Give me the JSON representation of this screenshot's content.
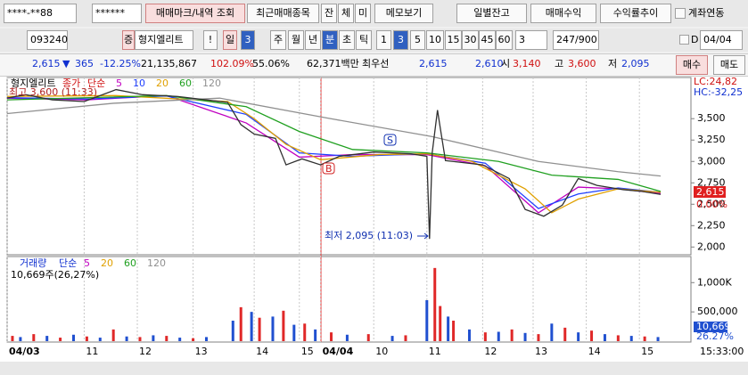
{
  "toolbar_top": [
    "****-**88",
    "******",
    "매매마크/내역 조회",
    "최근매매종목",
    "잔",
    "체",
    "미",
    "메모보기",
    "일별잔고",
    "매매수익",
    "수익률추이",
    "계좌연동"
  ],
  "toolbar_mid": [
    "093240",
    "증",
    "형지엘리트",
    "!",
    "일",
    "3",
    "주",
    "월",
    "년",
    "분",
    "초",
    "틱",
    "1",
    "3",
    "5",
    "10",
    "15",
    "30",
    "45",
    "60",
    "3",
    "247/900",
    "D",
    "04/04"
  ],
  "quote": [
    "2,615",
    "▼",
    "365",
    "-12.25%",
    "21,135,867",
    "102.09%",
    "55.06%",
    "62,371백만",
    "최우선",
    "2,615",
    "2,610",
    "시",
    "3,140",
    "고",
    "3,600",
    "저",
    "2,095",
    "매수",
    "매도"
  ],
  "chart_data": [
    {
      "type": "line",
      "title": "형지엘리트",
      "legend_method": "단순",
      "close": {
        "name": "종가",
        "color": "#303030",
        "x": [
          0,
          7,
          17,
          29,
          41,
          51,
          64,
          83,
          88,
          93,
          101,
          105,
          111,
          118,
          125,
          138,
          152,
          158,
          159,
          160,
          162,
          163,
          165,
          179,
          189,
          195,
          202,
          209,
          215,
          222,
          232,
          239,
          246
        ],
        "values": [
          3740,
          3780,
          3720,
          3700,
          3840,
          3780,
          3760,
          3690,
          3430,
          3320,
          3270,
          2960,
          3030,
          2960,
          3060,
          3110,
          3090,
          3060,
          2095,
          3100,
          3600,
          3400,
          3010,
          2960,
          2800,
          2440,
          2360,
          2490,
          2800,
          2720,
          2670,
          2650,
          2615
        ]
      },
      "series": [
        {
          "name": "5",
          "color": "#c000c0",
          "x": [
            0,
            30,
            60,
            90,
            110,
            130,
            158,
            180,
            200,
            215,
            230,
            246
          ],
          "values": [
            3740,
            3720,
            3770,
            3450,
            3050,
            3080,
            3080,
            2950,
            2400,
            2700,
            2680,
            2625
          ]
        },
        {
          "name": "10",
          "color": "#2040ff",
          "x": [
            0,
            30,
            60,
            90,
            110,
            130,
            158,
            180,
            200,
            215,
            230,
            246
          ],
          "values": [
            3745,
            3730,
            3765,
            3550,
            3100,
            3060,
            3090,
            2980,
            2450,
            2620,
            2690,
            2640
          ]
        },
        {
          "name": "20",
          "color": "#e0a000",
          "x": [
            0,
            41,
            83,
            93,
            105,
            118,
            140,
            158,
            175,
            195,
            205,
            215,
            230,
            246
          ],
          "values": [
            3760,
            3770,
            3700,
            3500,
            3200,
            3020,
            3080,
            3090,
            3000,
            2680,
            2400,
            2560,
            2680,
            2640
          ]
        },
        {
          "name": "60",
          "color": "#20a020",
          "x": [
            0,
            60,
            90,
            110,
            130,
            158,
            185,
            205,
            230,
            246
          ],
          "values": [
            3720,
            3770,
            3640,
            3350,
            3140,
            3100,
            3000,
            2840,
            2790,
            2650
          ]
        },
        {
          "name": "120",
          "color": "#909090",
          "x": [
            0,
            40,
            80,
            120,
            160,
            200,
            230,
            246
          ],
          "values": [
            3560,
            3680,
            3740,
            3510,
            3290,
            3000,
            2880,
            2830
          ]
        }
      ],
      "ylim": [
        1920,
        3950
      ],
      "yticks": [
        {
          "value": 2000,
          "label": "2,000"
        },
        {
          "value": 2250,
          "label": "2,250"
        },
        {
          "value": 2500,
          "label": "2,500"
        },
        {
          "value": 2750,
          "label": "2,750"
        },
        {
          "value": 3000,
          "label": "3,000"
        },
        {
          "value": 3250,
          "label": "3,250"
        },
        {
          "value": 3500,
          "label": "3,500"
        }
      ],
      "xlim": [
        0,
        247
      ],
      "xticks": [
        {
          "value": 0,
          "label": "04/03"
        },
        {
          "value": 29,
          "label": "11"
        },
        {
          "value": 49,
          "label": "12"
        },
        {
          "value": 70,
          "label": "13"
        },
        {
          "value": 93,
          "label": "14"
        },
        {
          "value": 110,
          "label": "15"
        },
        {
          "value": 118,
          "label": "04/04"
        },
        {
          "value": 138,
          "label": "10"
        },
        {
          "value": 158,
          "label": "11"
        },
        {
          "value": 179,
          "label": "12"
        },
        {
          "value": 198,
          "label": "13"
        },
        {
          "value": 218,
          "label": "14"
        },
        {
          "value": 238,
          "label": "15"
        }
      ],
      "grid": true,
      "annotations": {
        "high": "최고 3,600 (11:33)",
        "low": "최저 2,095 (11:03)",
        "buy": "B",
        "sell": "S",
        "lc": "LC:24,82",
        "hc": "HC:-32,25",
        "last": "2,615",
        "change": "0.00%"
      }
    },
    {
      "type": "bar",
      "title": "거래량",
      "legend_method": "단순",
      "ma_labels": [
        {
          "label": "5",
          "color": "#c000c0"
        },
        {
          "label": "20",
          "color": "#e0a000"
        },
        {
          "label": "60",
          "color": "#20a020"
        },
        {
          "label": "120",
          "color": "#909090"
        }
      ],
      "info": "10,669주(26,27%)",
      "series": [
        {
          "color": "#e02828",
          "x": [
            2,
            10,
            20,
            30,
            40,
            50,
            60,
            70,
            88,
            95,
            104,
            112,
            122,
            136,
            150,
            161,
            163,
            168,
            180,
            190,
            200,
            210,
            220,
            230,
            240
          ],
          "values": [
            90000,
            120000,
            60000,
            80000,
            200000,
            70000,
            90000,
            50000,
            580000,
            400000,
            520000,
            300000,
            150000,
            120000,
            100000,
            1250000,
            600000,
            350000,
            150000,
            200000,
            120000,
            230000,
            180000,
            100000,
            80000
          ]
        },
        {
          "color": "#2050d0",
          "x": [
            5,
            15,
            25,
            35,
            45,
            55,
            65,
            75,
            85,
            92,
            100,
            108,
            116,
            128,
            145,
            158,
            166,
            174,
            185,
            195,
            205,
            215,
            225,
            235,
            245
          ],
          "values": [
            70000,
            90000,
            110000,
            60000,
            80000,
            100000,
            60000,
            70000,
            350000,
            500000,
            420000,
            280000,
            200000,
            110000,
            90000,
            700000,
            420000,
            200000,
            160000,
            140000,
            300000,
            150000,
            120000,
            90000,
            70000
          ]
        }
      ],
      "ylim": [
        0,
        1400000
      ],
      "yticks": [
        {
          "value": 500000,
          "label": "500,000"
        },
        {
          "value": 1000000,
          "label": "1,000K"
        }
      ],
      "xlim": [
        0,
        247
      ],
      "annotations": {
        "last": "10,669",
        "ratio": "26.27%"
      }
    }
  ],
  "clock": "15:33:00"
}
